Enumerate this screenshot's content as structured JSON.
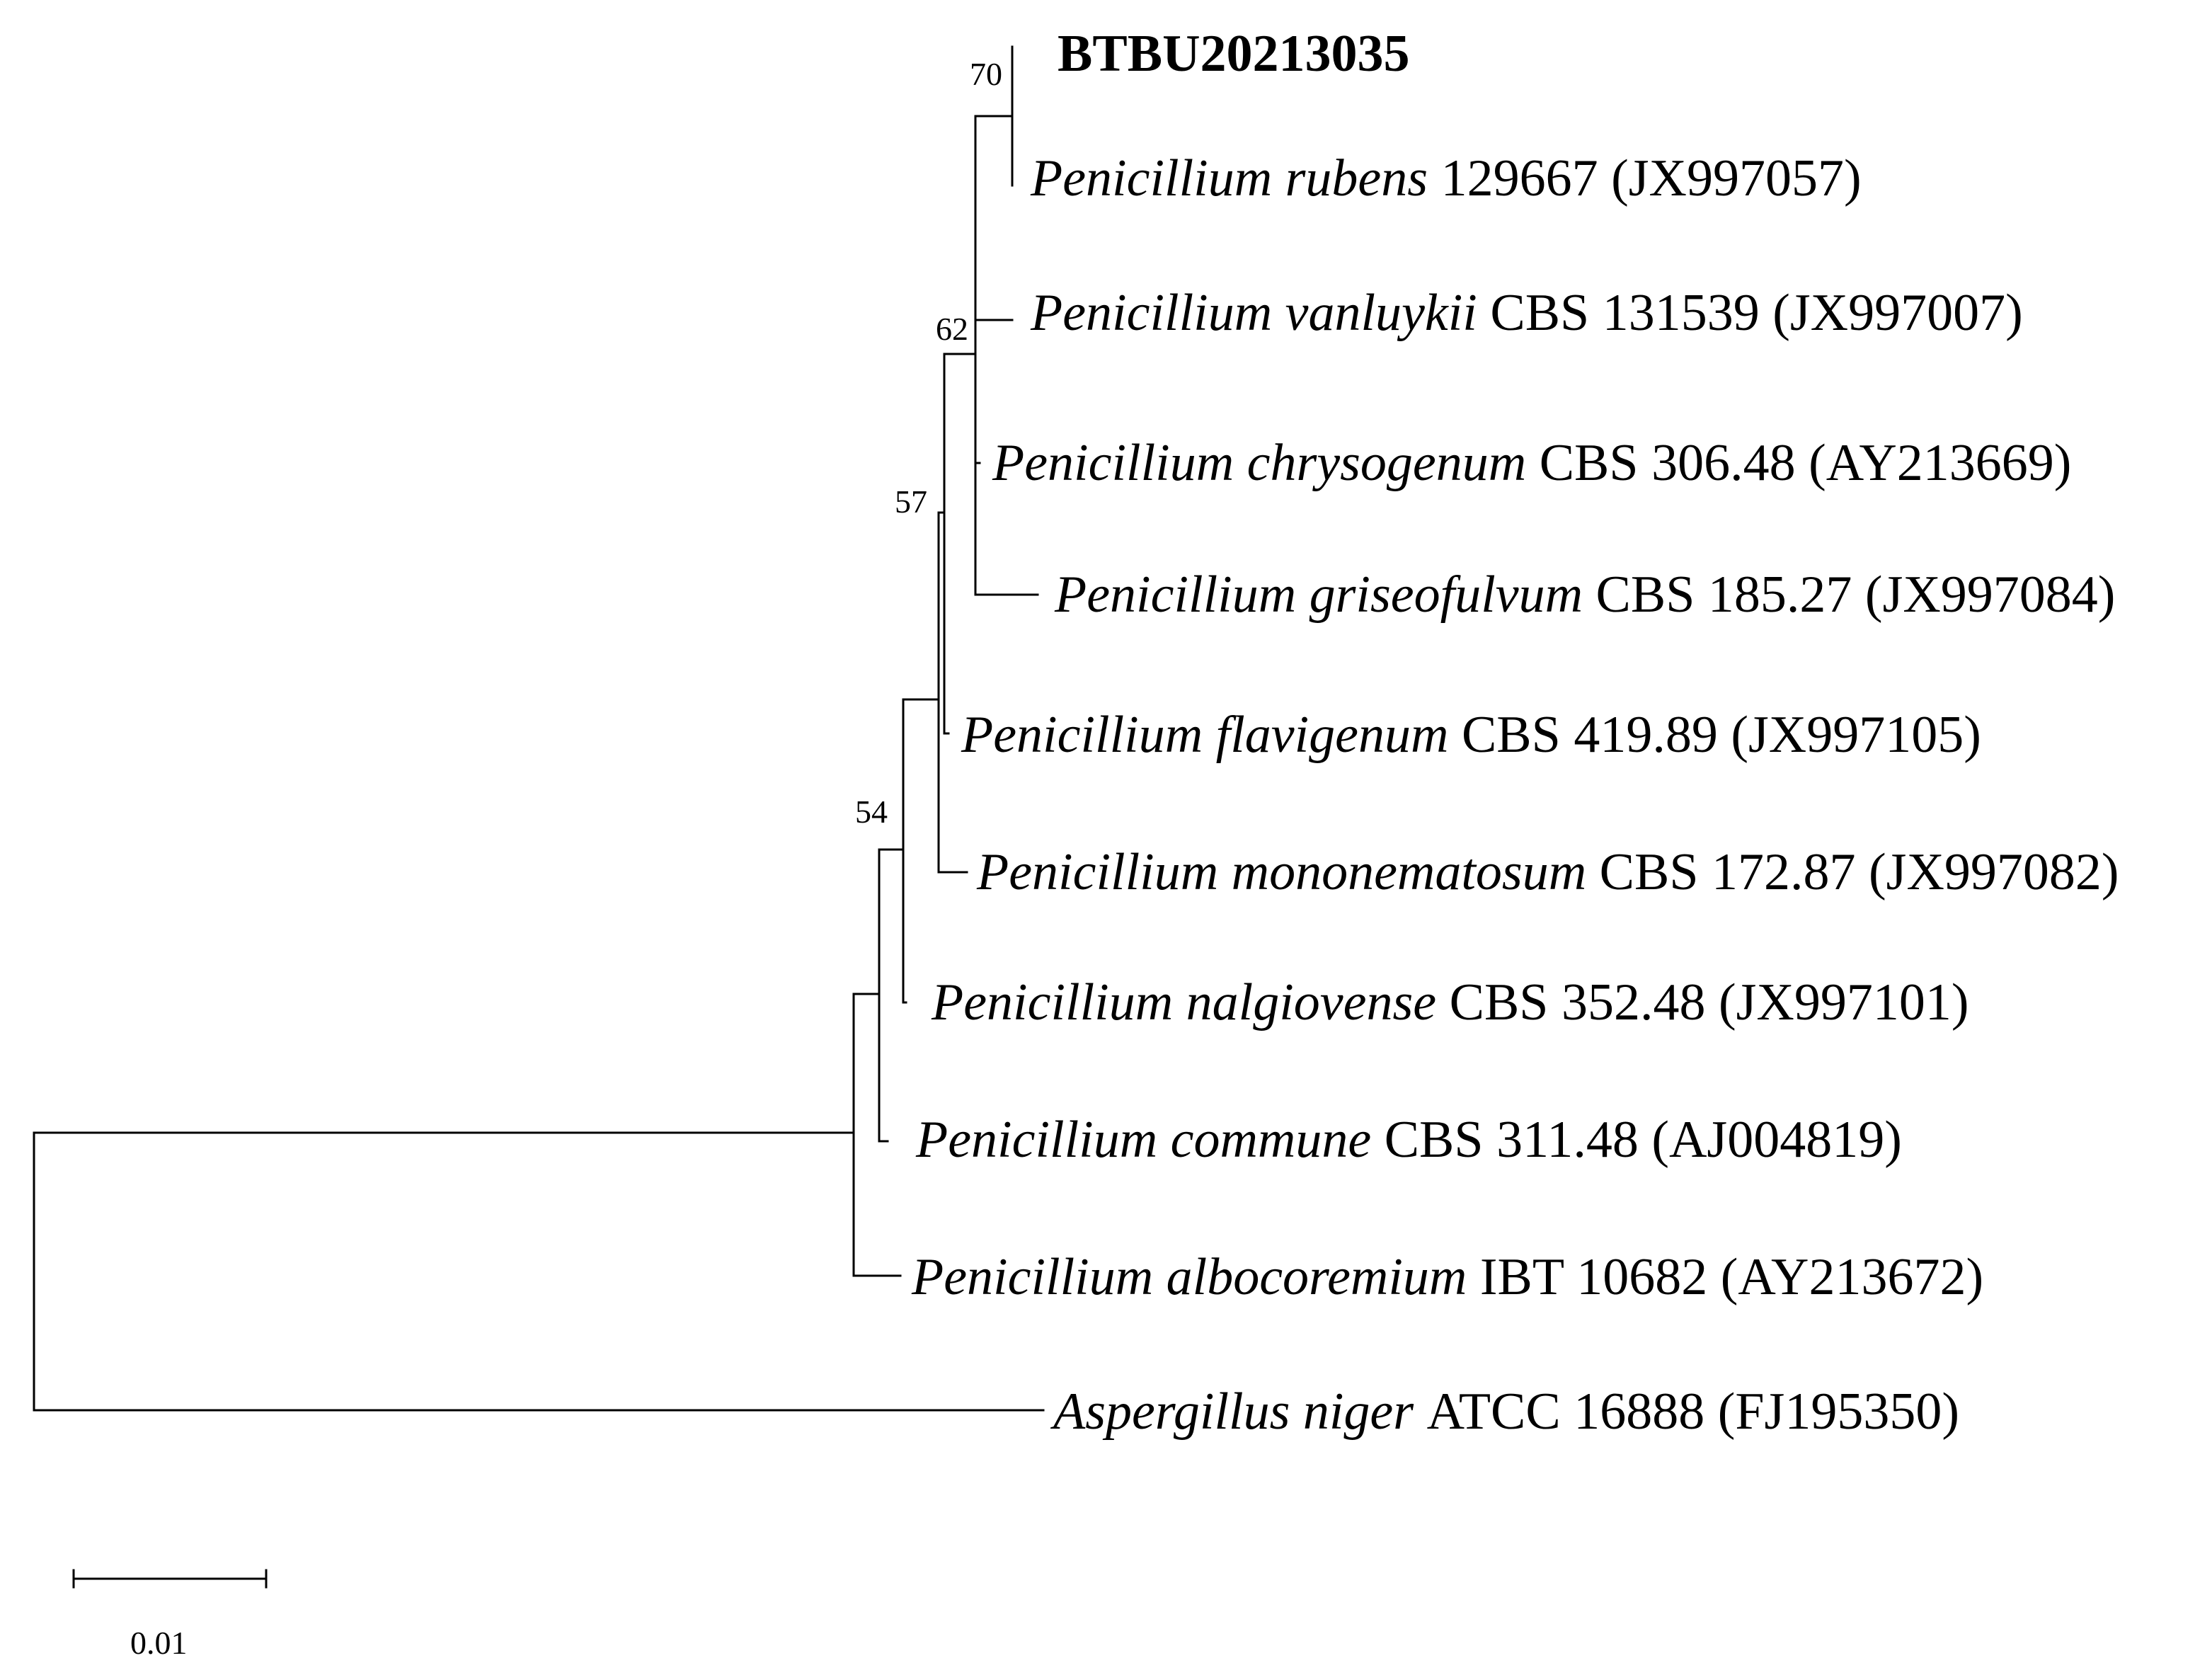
{
  "figure": {
    "taxa": [
      {
        "id": "btbu",
        "species": "",
        "strain": "BTBU20213035",
        "accession": "",
        "bold": true
      },
      {
        "id": "rubens",
        "species": "Penicillium rubens",
        "strain": "129667",
        "accession": "(JX997057)"
      },
      {
        "id": "vanluykii",
        "species": "Penicillium vanluykii",
        "strain": "CBS 131539",
        "accession": "(JX997007)"
      },
      {
        "id": "chrysogenum",
        "species": "Penicillium chrysogenum",
        "strain": "CBS 306.48",
        "accession": "(AY213669)"
      },
      {
        "id": "griseofulvum",
        "species": "Penicillium griseofulvum",
        "strain": "CBS 185.27",
        "accession": "(JX997084)"
      },
      {
        "id": "flavigenum",
        "species": "Penicillium flavigenum",
        "strain": "CBS 419.89",
        "accession": "(JX997105)"
      },
      {
        "id": "mononematosum",
        "species": "Penicillium mononematosum",
        "strain": "CBS 172.87",
        "accession": "(JX997082)"
      },
      {
        "id": "nalgiovense",
        "species": "Penicillium nalgiovense",
        "strain": "CBS 352.48",
        "accession": "(JX997101)"
      },
      {
        "id": "commune",
        "species": "Penicillium commune",
        "strain": "CBS 311.48",
        "accession": "(AJ004819)"
      },
      {
        "id": "albocoremium",
        "species": "Penicillium albocoremium",
        "strain": "IBT 10682",
        "accession": "(AY213672)"
      },
      {
        "id": "niger",
        "species": "Aspergillus niger",
        "strain": "ATCC 16888",
        "accession": "(FJ195350)"
      }
    ],
    "bootstrap": {
      "n70": "70",
      "n62": "62",
      "n57": "57",
      "n54": "54"
    },
    "scale_bar": {
      "label": "0.01",
      "length_subs_per_site": 0.01
    }
  }
}
